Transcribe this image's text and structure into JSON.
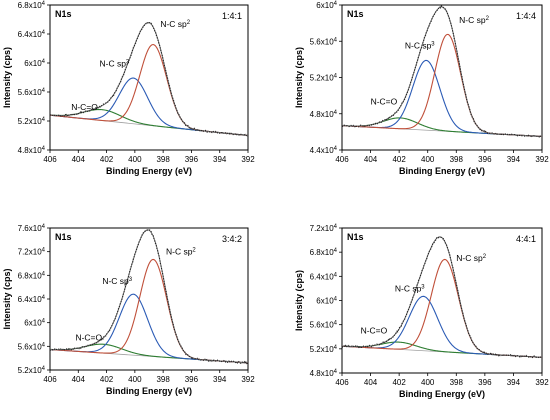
{
  "chart_data": [
    {
      "type": "line",
      "title": "N1s",
      "ratio_label": "1:4:1",
      "xlabel": "Binding Energy (eV)",
      "ylabel": "Intensity (cps)",
      "xlim": [
        406,
        392
      ],
      "ylim": [
        48000,
        68000
      ],
      "x_ticks": [
        "406",
        "404",
        "402",
        "400",
        "398",
        "396",
        "394",
        "392"
      ],
      "y_ticks": [
        48000,
        52000,
        56000,
        60000,
        64000,
        68000
      ],
      "y_tick_labels": [
        {
          "m": "4.8x10",
          "e": "4"
        },
        {
          "m": "5.2x10",
          "e": "4"
        },
        {
          "m": "5.6x10",
          "e": "4"
        },
        {
          "m": "6x10",
          "e": "4"
        },
        {
          "m": "6.4x10",
          "e": "4"
        },
        {
          "m": "6.8x10",
          "e": "4"
        }
      ],
      "baseline": [
        [
          405,
          52600
        ],
        [
          392,
          50000
        ]
      ],
      "peaks": [
        {
          "name": "N-C=O",
          "center": 402.3,
          "height": 1500,
          "sigma": 1.3,
          "color": "#2e7d32"
        },
        {
          "name": "N-C sp3",
          "center": 400.1,
          "height": 6300,
          "sigma": 1.0,
          "color": "#2b5bb5"
        },
        {
          "name": "N-C sp2",
          "center": 398.7,
          "height": 11200,
          "sigma": 0.95,
          "color": "#c0503a"
        }
      ],
      "annotations": [
        {
          "text": "N-C=O",
          "sup": "",
          "x": 404.5,
          "y": 53500
        },
        {
          "text": "N-C sp",
          "sup": "3",
          "x": 402.5,
          "y": 59500
        },
        {
          "text": "N-C sp",
          "sup": "2",
          "x": 398.2,
          "y": 65000
        }
      ]
    },
    {
      "type": "line",
      "title": "N1s",
      "ratio_label": "1:4:4",
      "xlabel": "Binding Energy (eV)",
      "ylabel": "Intensity (cps)",
      "xlim": [
        406,
        392
      ],
      "ylim": [
        44000,
        60000
      ],
      "x_ticks": [
        "406",
        "404",
        "402",
        "400",
        "398",
        "396",
        "394",
        "392"
      ],
      "y_ticks": [
        44000,
        48000,
        52000,
        56000,
        60000
      ],
      "y_tick_labels": [
        {
          "m": "4.4x10",
          "e": "4"
        },
        {
          "m": "4.8x10",
          "e": "4"
        },
        {
          "m": "5.2x10",
          "e": "4"
        },
        {
          "m": "5.6x10",
          "e": "4"
        },
        {
          "m": "6x10",
          "e": "4"
        }
      ],
      "baseline": [
        [
          405,
          46600
        ],
        [
          392,
          45500
        ]
      ],
      "peaks": [
        {
          "name": "N-C=O",
          "center": 401.9,
          "height": 1200,
          "sigma": 1.2,
          "color": "#2e7d32"
        },
        {
          "name": "N-C sp3",
          "center": 400.1,
          "height": 7700,
          "sigma": 0.95,
          "color": "#2b5bb5"
        },
        {
          "name": "N-C sp2",
          "center": 398.6,
          "height": 10700,
          "sigma": 0.9,
          "color": "#c0503a"
        }
      ],
      "annotations": [
        {
          "text": "N-C=O",
          "sup": "",
          "x": 404.0,
          "y": 49000
        },
        {
          "text": "N-C sp",
          "sup": "3",
          "x": 401.6,
          "y": 55200
        },
        {
          "text": "N-C sp",
          "sup": "2",
          "x": 397.8,
          "y": 58000
        }
      ]
    },
    {
      "type": "line",
      "title": "N1s",
      "ratio_label": "3:4:2",
      "xlabel": "Binding Energy (eV)",
      "ylabel": "Intensity (cps)",
      "xlim": [
        406,
        392
      ],
      "ylim": [
        52000,
        76000
      ],
      "x_ticks": [
        "406",
        "404",
        "402",
        "400",
        "398",
        "396",
        "394",
        "392"
      ],
      "y_ticks": [
        52000,
        56000,
        60000,
        64000,
        68000,
        72000,
        76000
      ],
      "y_tick_labels": [
        {
          "m": "5.2x10",
          "e": "4"
        },
        {
          "m": "5.6x10",
          "e": "4"
        },
        {
          "m": "6x10",
          "e": "4"
        },
        {
          "m": "6.4x10",
          "e": "4"
        },
        {
          "m": "6.8x10",
          "e": "4"
        },
        {
          "m": "7.2x10",
          "e": "4"
        },
        {
          "m": "7.6x10",
          "e": "4"
        }
      ],
      "baseline": [
        [
          405,
          55300
        ],
        [
          392,
          53200
        ]
      ],
      "peaks": [
        {
          "name": "N-C=O",
          "center": 402.2,
          "height": 1500,
          "sigma": 1.3,
          "color": "#2e7d32"
        },
        {
          "name": "N-C sp3",
          "center": 400.1,
          "height": 10300,
          "sigma": 1.0,
          "color": "#2b5bb5"
        },
        {
          "name": "N-C sp2",
          "center": 398.7,
          "height": 16400,
          "sigma": 0.95,
          "color": "#c0503a"
        }
      ],
      "annotations": [
        {
          "text": "N-C=O",
          "sup": "",
          "x": 404.2,
          "y": 57000
        },
        {
          "text": "N-C sp",
          "sup": "3",
          "x": 402.3,
          "y": 66500
        },
        {
          "text": "N-C sp",
          "sup": "2",
          "x": 397.8,
          "y": 71500
        }
      ]
    },
    {
      "type": "line",
      "title": "N1s",
      "ratio_label": "4:4:1",
      "xlabel": "Binding Energy (eV)",
      "ylabel": "Intensity (cps)",
      "xlim": [
        406,
        392
      ],
      "ylim": [
        48000,
        72000
      ],
      "x_ticks": [
        "406",
        "404",
        "402",
        "400",
        "398",
        "396",
        "394",
        "392"
      ],
      "y_ticks": [
        48000,
        52000,
        56000,
        60000,
        64000,
        68000,
        72000
      ],
      "y_tick_labels": [
        {
          "m": "4.8x10",
          "e": "4"
        },
        {
          "m": "5.2x10",
          "e": "4"
        },
        {
          "m": "5.6x10",
          "e": "4"
        },
        {
          "m": "6x10",
          "e": "4"
        },
        {
          "m": "6.4x10",
          "e": "4"
        },
        {
          "m": "6.8x10",
          "e": "4"
        },
        {
          "m": "7.2x10",
          "e": "4"
        }
      ],
      "baseline": [
        [
          405,
          52300
        ],
        [
          392,
          50600
        ]
      ],
      "peaks": [
        {
          "name": "N-C=O",
          "center": 402.0,
          "height": 1200,
          "sigma": 1.2,
          "color": "#2e7d32"
        },
        {
          "name": "N-C sp3",
          "center": 400.3,
          "height": 9000,
          "sigma": 1.0,
          "color": "#2b5bb5"
        },
        {
          "name": "N-C sp2",
          "center": 398.8,
          "height": 15300,
          "sigma": 0.95,
          "color": "#c0503a"
        }
      ],
      "annotations": [
        {
          "text": "N-C=O",
          "sup": "",
          "x": 404.7,
          "y": 54500
        },
        {
          "text": "N-C sp",
          "sup": "3",
          "x": 402.3,
          "y": 61500
        },
        {
          "text": "N-C sp",
          "sup": "2",
          "x": 398.0,
          "y": 66500
        }
      ]
    }
  ]
}
